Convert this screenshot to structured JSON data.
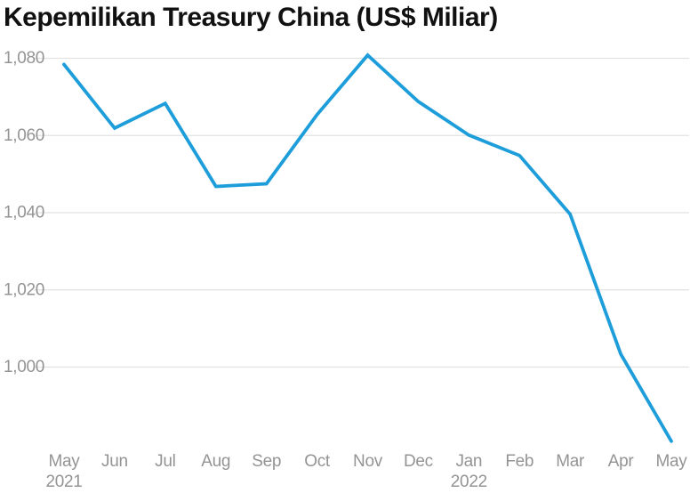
{
  "chart_data": {
    "type": "line",
    "title": "Kepemilikan Treasury China (US$ Miliar)",
    "categories": [
      "May",
      "Jun",
      "Jul",
      "Aug",
      "Sep",
      "Oct",
      "Nov",
      "Dec",
      "Jan",
      "Feb",
      "Mar",
      "Apr",
      "May"
    ],
    "year_labels": [
      {
        "index": 0,
        "text": "2021"
      },
      {
        "index": 8,
        "text": "2022"
      }
    ],
    "values": [
      1078.4,
      1061.9,
      1068.3,
      1046.8,
      1047.5,
      1065.4,
      1080.8,
      1068.8,
      1060.1,
      1054.8,
      1039.6,
      1003.4,
      980.8
    ],
    "ylim": [
      1000,
      1080
    ],
    "yticks": [
      1000,
      1020,
      1040,
      1060,
      1080
    ],
    "xlabel": "",
    "ylabel": "",
    "grid": "horizontal",
    "legend": "none",
    "line_color": "#1d9dd9",
    "label_color": "#949494",
    "grid_color": "#e2e2e2",
    "title_color": "#111111"
  }
}
